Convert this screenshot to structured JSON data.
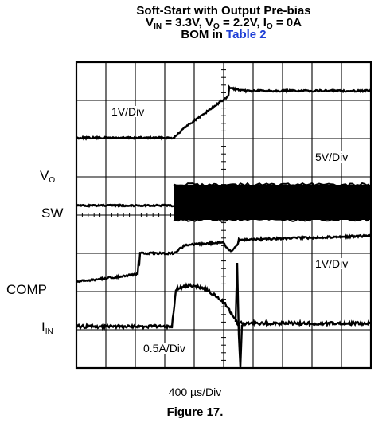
{
  "chart_data": {
    "type": "line",
    "title": {
      "line1": "Soft-Start with Output Pre-bias",
      "line2": {
        "vin_label": "V",
        "vin_sub": "IN",
        "vin_value": " = 3.3V, ",
        "vo_label": "V",
        "vo_sub": "O",
        "vo_value": " = 2.2V, ",
        "io_label": "I",
        "io_sub": "O",
        "io_value": " = 0A"
      },
      "line3": {
        "prefix": "BOM in ",
        "link": "Table 2"
      }
    },
    "xlabel": "400 µs/Div",
    "grid": true,
    "grid_divisions": {
      "x": 10,
      "y": 8
    },
    "channels": [
      {
        "label": "V",
        "label_sub": "O",
        "scale": "1V/Div",
        "color": "#000000"
      },
      {
        "label": "SW",
        "scale": "5V/Div",
        "color": "#000000"
      },
      {
        "label": "COMP",
        "scale": "1V/Div",
        "color": "#000000"
      },
      {
        "label": "I",
        "label_sub": "IN",
        "scale": "0.5A/Div",
        "color": "#000000"
      }
    ]
  },
  "figure": {
    "caption": "Figure 17."
  }
}
